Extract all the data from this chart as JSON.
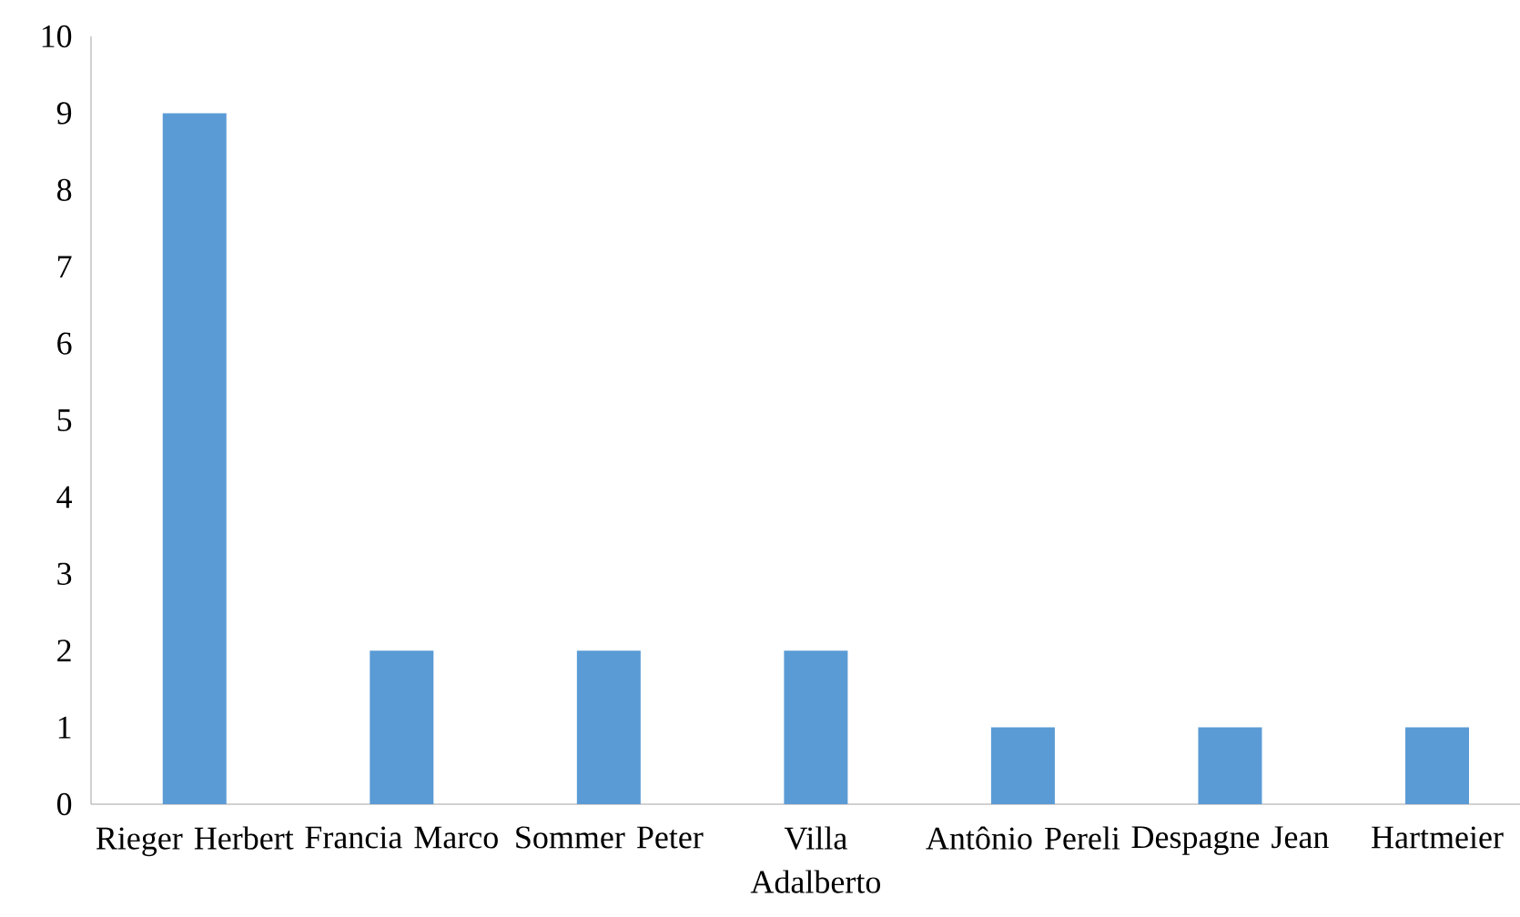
{
  "chart_data": {
    "type": "bar",
    "categories": [
      "Rieger Herbert",
      "Francia Marco",
      "Sommer Peter",
      "Villa Adalberto",
      "Antônio Pereli",
      "Despagne Jean",
      "Hartmeier"
    ],
    "values": [
      9,
      2,
      2,
      2,
      1,
      1,
      1
    ],
    "color": "#5b9bd5",
    "ylim": [
      0,
      10
    ],
    "yticks": [
      0,
      1,
      2,
      3,
      4,
      5,
      6,
      7,
      8,
      9,
      10
    ]
  }
}
